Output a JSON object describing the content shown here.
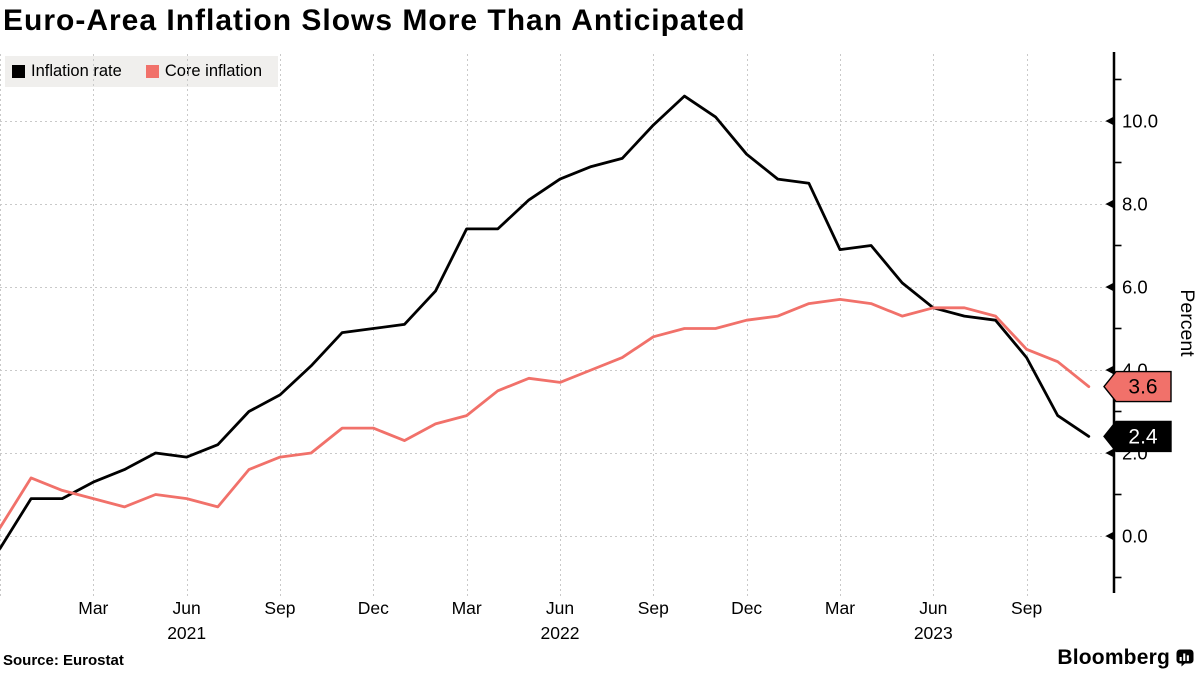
{
  "title": "Euro-Area Inflation Slows More Than Anticipated",
  "source_label": "Source: Eurostat",
  "brand": {
    "name": "Bloomberg",
    "icon": "bloomberg-equalizer-icon"
  },
  "colors": {
    "headline": "#000000",
    "core": "#f1716a",
    "grid": "#c9c9c9",
    "legend_bg": "#f0efed",
    "axis": "#000000"
  },
  "legend": {
    "items": [
      {
        "label": "Inflation rate",
        "color": "#000000"
      },
      {
        "label": "Core inflation",
        "color": "#f1716a"
      }
    ]
  },
  "y_axis": {
    "label": "Percent",
    "tick_values": [
      0,
      2,
      4,
      6,
      8,
      10
    ],
    "tick_labels": [
      "0.0",
      "2.0",
      "4.0",
      "6.0",
      "8.0",
      "10.0"
    ],
    "minor_tick_values": [
      -1,
      1,
      3,
      5,
      7,
      9,
      11
    ]
  },
  "x_axis": {
    "grid_month_indices": [
      0,
      3,
      6,
      9,
      12,
      15,
      18,
      21,
      24,
      27,
      30,
      33
    ],
    "ticks": [
      {
        "label": "Mar",
        "month_index": 3
      },
      {
        "label": "Jun",
        "month_index": 6,
        "year": "2021"
      },
      {
        "label": "Sep",
        "month_index": 9
      },
      {
        "label": "Dec",
        "month_index": 12
      },
      {
        "label": "Mar",
        "month_index": 15
      },
      {
        "label": "Jun",
        "month_index": 18,
        "year": "2022"
      },
      {
        "label": "Sep",
        "month_index": 21
      },
      {
        "label": "Dec",
        "month_index": 24
      },
      {
        "label": "Mar",
        "month_index": 27
      },
      {
        "label": "Jun",
        "month_index": 30,
        "year": "2023"
      },
      {
        "label": "Sep",
        "month_index": 33
      }
    ]
  },
  "end_tags": [
    {
      "text": "3.6",
      "value": 3.6,
      "fill": "#f1716a",
      "text_color": "#000000",
      "series": "Core inflation"
    },
    {
      "text": "2.4",
      "value": 2.4,
      "fill": "#000000",
      "text_color": "#ffffff",
      "series": "Inflation rate"
    }
  ],
  "chart_data": {
    "type": "line",
    "title": "Euro-Area Inflation Slows More Than Anticipated",
    "ylabel": "Percent",
    "ylim": [
      -1.35,
      11.65
    ],
    "grid": true,
    "legend_position": "top-left",
    "x_unit": "month",
    "categories": [
      "2020-12",
      "2021-01",
      "2021-02",
      "2021-03",
      "2021-04",
      "2021-05",
      "2021-06",
      "2021-07",
      "2021-08",
      "2021-09",
      "2021-10",
      "2021-11",
      "2021-12",
      "2022-01",
      "2022-02",
      "2022-03",
      "2022-04",
      "2022-05",
      "2022-06",
      "2022-07",
      "2022-08",
      "2022-09",
      "2022-10",
      "2022-11",
      "2022-12",
      "2023-01",
      "2023-02",
      "2023-03",
      "2023-04",
      "2023-05",
      "2023-06",
      "2023-07",
      "2023-08",
      "2023-09",
      "2023-10",
      "2023-11"
    ],
    "series": [
      {
        "name": "Inflation rate",
        "color": "#000000",
        "values": [
          -0.3,
          0.9,
          0.9,
          1.3,
          1.6,
          2.0,
          1.9,
          2.2,
          3.0,
          3.4,
          4.1,
          4.9,
          5.0,
          5.1,
          5.9,
          7.4,
          7.4,
          8.1,
          8.6,
          8.9,
          9.1,
          9.9,
          10.6,
          10.1,
          9.2,
          8.6,
          8.5,
          6.9,
          7.0,
          6.1,
          5.5,
          5.3,
          5.2,
          4.3,
          2.9,
          2.4
        ]
      },
      {
        "name": "Core inflation",
        "color": "#f1716a",
        "values": [
          0.2,
          1.4,
          1.1,
          0.9,
          0.7,
          1.0,
          0.9,
          0.7,
          1.6,
          1.9,
          2.0,
          2.6,
          2.6,
          2.3,
          2.7,
          2.9,
          3.5,
          3.8,
          3.7,
          4.0,
          4.3,
          4.8,
          5.0,
          5.0,
          5.2,
          5.3,
          5.6,
          5.7,
          5.6,
          5.3,
          5.5,
          5.5,
          5.3,
          4.5,
          4.2,
          3.6
        ]
      }
    ]
  }
}
